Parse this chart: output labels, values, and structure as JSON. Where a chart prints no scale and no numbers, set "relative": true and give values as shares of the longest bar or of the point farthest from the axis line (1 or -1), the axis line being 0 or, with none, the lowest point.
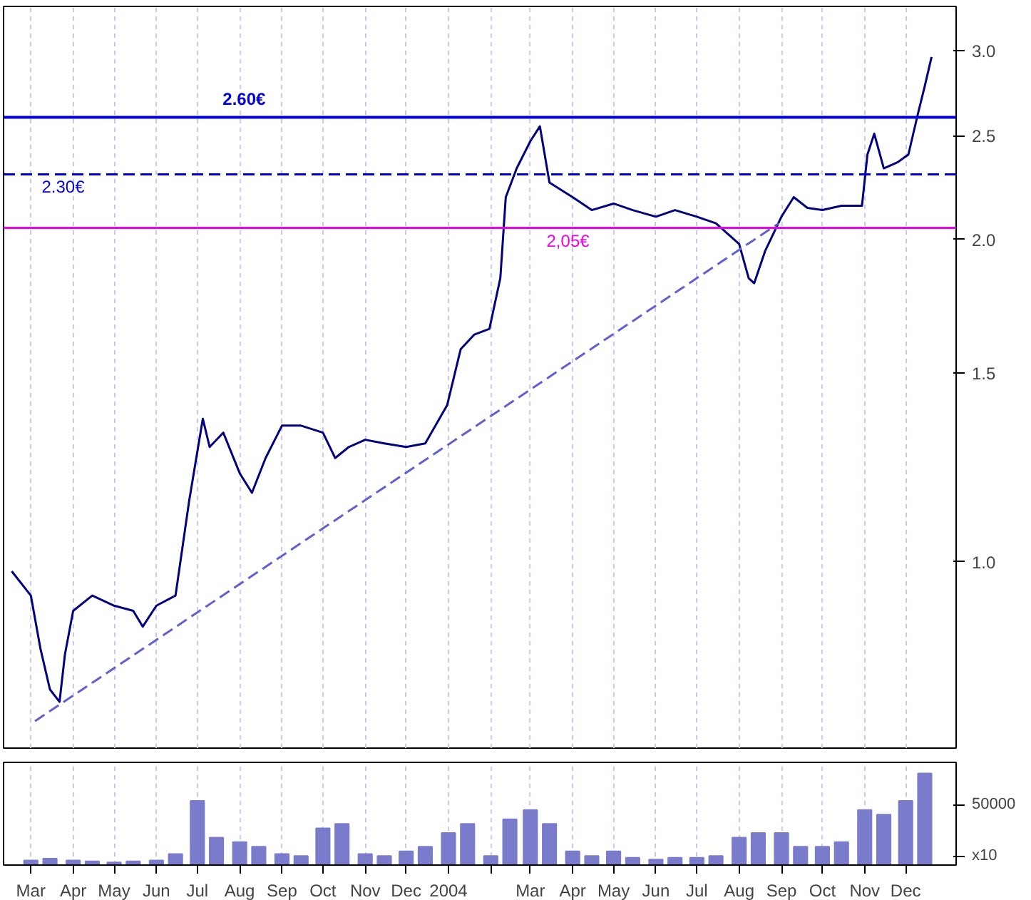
{
  "chart_data": [
    {
      "type": "line",
      "log": "y",
      "xlim": [
        "2003-02-09",
        "2005-01-07"
      ],
      "ylim": [
        0.67,
        3.3
      ],
      "yticks": [
        {
          "value": 1.0,
          "label": "1.0"
        },
        {
          "value": 1.5,
          "label": "1.5"
        },
        {
          "value": 2.0,
          "label": "2.0"
        },
        {
          "value": 2.5,
          "label": "2.5"
        },
        {
          "value": 3.0,
          "label": "3.0"
        }
      ],
      "xticks": [
        {
          "value": "2003-03-01",
          "label": null
        },
        {
          "value": "2003-04-01",
          "label": null
        },
        {
          "value": "2003-05-01",
          "label": null
        },
        {
          "value": "2003-06-01",
          "label": null
        },
        {
          "value": "2003-07-01",
          "label": null
        },
        {
          "value": "2003-08-01",
          "label": null
        },
        {
          "value": "2003-09-01",
          "label": null
        },
        {
          "value": "2003-10-01",
          "label": null
        },
        {
          "value": "2003-11-01",
          "label": null
        },
        {
          "value": "2003-12-01",
          "label": null
        },
        {
          "value": "2004-01-01",
          "label": null
        },
        {
          "value": "2004-02-01",
          "label": null
        },
        {
          "value": "2004-03-01",
          "label": null
        },
        {
          "value": "2004-04-01",
          "label": null
        },
        {
          "value": "2004-05-01",
          "label": null
        },
        {
          "value": "2004-06-01",
          "label": null
        },
        {
          "value": "2004-07-01",
          "label": null
        },
        {
          "value": "2004-08-01",
          "label": null
        },
        {
          "value": "2004-09-01",
          "label": null
        },
        {
          "value": "2004-10-01",
          "label": null
        },
        {
          "value": "2004-11-01",
          "label": null
        },
        {
          "value": "2004-12-01",
          "label": null
        }
      ],
      "tick_labels": "y",
      "grid": "x",
      "marker": "none",
      "series": [
        {
          "color": "#000080",
          "line_style": "solid",
          "x": [
            "2003-02-15",
            "2003-03-01",
            "2003-03-08",
            "2003-03-15",
            "2003-03-22",
            "2003-03-26",
            "2003-04-01",
            "2003-04-15",
            "2003-05-01",
            "2003-05-15",
            "2003-05-22",
            "2003-06-01",
            "2003-06-15",
            "2003-06-25",
            "2003-07-05",
            "2003-07-10",
            "2003-07-20",
            "2003-08-01",
            "2003-08-10",
            "2003-08-20",
            "2003-09-01",
            "2003-09-15",
            "2003-10-01",
            "2003-10-10",
            "2003-10-20",
            "2003-11-01",
            "2003-11-15",
            "2003-12-01",
            "2003-12-15",
            "2003-12-31",
            "2004-01-10",
            "2004-01-20",
            "2004-01-31",
            "2004-02-08",
            "2004-02-12",
            "2004-02-20",
            "2004-03-01",
            "2004-03-08",
            "2004-03-15",
            "2004-04-01",
            "2004-04-15",
            "2004-05-01",
            "2004-05-15",
            "2004-06-01",
            "2004-06-15",
            "2004-07-01",
            "2004-07-15",
            "2004-08-01",
            "2004-08-08",
            "2004-08-12",
            "2004-08-20",
            "2004-09-01",
            "2004-09-10",
            "2004-09-20",
            "2004-10-01",
            "2004-10-15",
            "2004-10-30",
            "2004-11-03",
            "2004-11-08",
            "2004-11-15",
            "2004-11-25",
            "2004-12-03",
            "2004-12-10",
            "2004-12-15",
            "2004-12-20"
          ],
          "values": [
            0.98,
            0.93,
            0.83,
            0.76,
            0.74,
            0.82,
            0.9,
            0.93,
            0.91,
            0.9,
            0.87,
            0.91,
            0.93,
            1.14,
            1.36,
            1.28,
            1.32,
            1.21,
            1.16,
            1.25,
            1.34,
            1.34,
            1.32,
            1.25,
            1.28,
            1.3,
            1.29,
            1.28,
            1.29,
            1.4,
            1.58,
            1.63,
            1.65,
            1.84,
            2.19,
            2.33,
            2.47,
            2.55,
            2.26,
            2.19,
            2.13,
            2.16,
            2.13,
            2.1,
            2.13,
            2.1,
            2.07,
            1.98,
            1.84,
            1.82,
            1.95,
            2.1,
            2.19,
            2.14,
            2.13,
            2.15,
            2.15,
            2.4,
            2.51,
            2.33,
            2.36,
            2.4,
            2.62,
            2.78,
            2.96
          ]
        },
        {
          "color": "#6060d0",
          "line_style": "dashed",
          "x": [
            "2003-03-04",
            "2004-08-30"
          ],
          "values": [
            0.71,
            2.07
          ]
        }
      ],
      "ref_lines": [
        {
          "axis": "y",
          "value": 2.6,
          "label": "2.60€",
          "color": "#0000dd",
          "line_style": "solid"
        },
        {
          "axis": "y",
          "value": 2.3,
          "label": "2.30€",
          "color": "#0000dd",
          "line_style": "dashed"
        },
        {
          "axis": "y",
          "value": 2.05,
          "label": "2,05€",
          "color": "#ee00ee",
          "line_style": "solid"
        }
      ]
    },
    {
      "type": "bar",
      "relative": true,
      "xlim": [
        "2003-02-09",
        "2005-01-07"
      ],
      "tick_labels": "x",
      "grid": "x",
      "xticks": [
        {
          "value": "2003-03-01",
          "label": "Mar"
        },
        {
          "value": "2003-04-01",
          "label": "Apr"
        },
        {
          "value": "2003-05-01",
          "label": "May"
        },
        {
          "value": "2003-06-01",
          "label": "Jun"
        },
        {
          "value": "2003-07-01",
          "label": "Jul"
        },
        {
          "value": "2003-08-01",
          "label": "Aug"
        },
        {
          "value": "2003-09-01",
          "label": "Sep"
        },
        {
          "value": "2003-10-01",
          "label": "Oct"
        },
        {
          "value": "2003-11-01",
          "label": "Nov"
        },
        {
          "value": "2003-12-01",
          "label": "Dec"
        },
        {
          "value": "2004-01-01",
          "label": "2004"
        },
        {
          "value": "2004-02-01",
          "label": null
        },
        {
          "value": "2004-03-01",
          "label": "Mar"
        },
        {
          "value": "2004-04-01",
          "label": "Apr"
        },
        {
          "value": "2004-05-01",
          "label": "May"
        },
        {
          "value": "2004-06-01",
          "label": "Jun"
        },
        {
          "value": "2004-07-01",
          "label": "Jul"
        },
        {
          "value": "2004-08-01",
          "label": "Aug"
        },
        {
          "value": "2004-09-01",
          "label": "Sep"
        },
        {
          "value": "2004-10-01",
          "label": "Oct"
        },
        {
          "value": "2004-11-01",
          "label": "Nov"
        },
        {
          "value": "2004-12-01",
          "label": "Dec"
        }
      ],
      "color": "#7b7bcc",
      "x": [
        "2003-03-01",
        "2003-03-15",
        "2003-04-01",
        "2003-04-15",
        "2003-05-01",
        "2003-05-15",
        "2003-06-01",
        "2003-06-15",
        "2003-07-01",
        "2003-07-15",
        "2003-08-01",
        "2003-08-15",
        "2003-09-01",
        "2003-09-15",
        "2003-10-01",
        "2003-10-15",
        "2003-11-01",
        "2003-11-15",
        "2003-12-01",
        "2003-12-15",
        "2004-01-01",
        "2004-01-15",
        "2004-02-01",
        "2004-02-15",
        "2004-03-01",
        "2004-03-15",
        "2004-04-01",
        "2004-04-15",
        "2004-05-01",
        "2004-05-15",
        "2004-06-01",
        "2004-06-15",
        "2004-07-01",
        "2004-07-15",
        "2004-08-01",
        "2004-08-15",
        "2004-09-01",
        "2004-09-15",
        "2004-10-01",
        "2004-10-15",
        "2004-11-01",
        "2004-11-15",
        "2004-12-01",
        "2004-12-15"
      ],
      "values": [
        0.05,
        0.07,
        0.05,
        0.04,
        0.03,
        0.04,
        0.05,
        0.12,
        0.7,
        0.3,
        0.25,
        0.2,
        0.12,
        0.1,
        0.4,
        0.45,
        0.12,
        0.1,
        0.15,
        0.2,
        0.35,
        0.45,
        0.1,
        0.5,
        0.6,
        0.45,
        0.15,
        0.1,
        0.15,
        0.08,
        0.06,
        0.08,
        0.08,
        0.1,
        0.3,
        0.35,
        0.35,
        0.2,
        0.2,
        0.25,
        0.6,
        0.55,
        0.7,
        1.0
      ],
      "annotations": [
        "50000",
        "x10"
      ]
    }
  ]
}
